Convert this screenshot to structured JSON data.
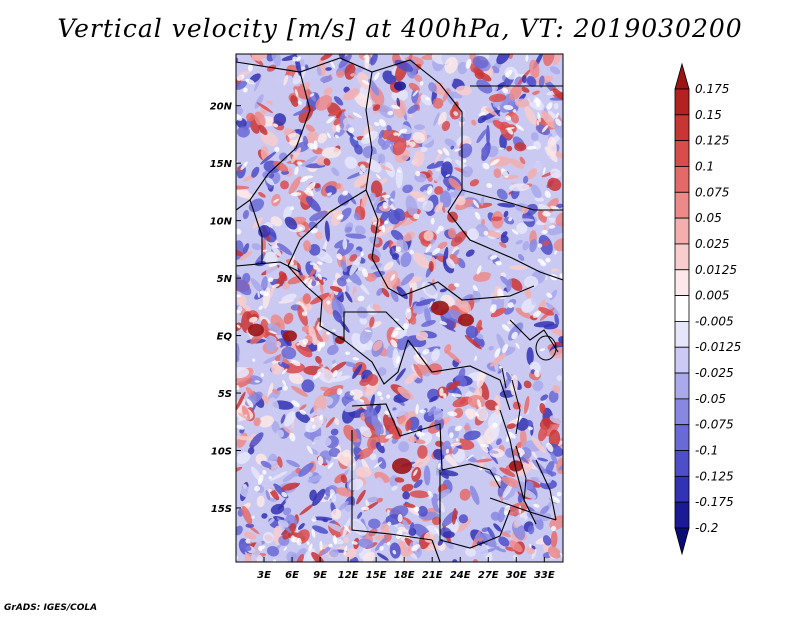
{
  "title": "Vertical velocity [m/s] at 400hPa, VT: 2019030200",
  "credit": "GrADS: IGES/COLA",
  "map": {
    "lat_labels": [
      "20N",
      "15N",
      "10N",
      "5N",
      "EQ",
      "5S",
      "10S",
      "15S"
    ],
    "lon_labels": [
      "3E",
      "6E",
      "9E",
      "12E",
      "15E",
      "18E",
      "21E",
      "24E",
      "27E",
      "30E",
      "33E"
    ],
    "lat_range": [
      -19.7,
      24.5
    ],
    "lon_range": [
      0,
      35
    ]
  },
  "colorbar": {
    "labels": [
      "0.175",
      "0.15",
      "0.125",
      "0.1",
      "0.075",
      "0.05",
      "0.025",
      "0.0125",
      "0.005",
      "-0.005",
      "-0.0125",
      "-0.025",
      "-0.05",
      "-0.075",
      "-0.1",
      "-0.125",
      "-0.175",
      "-0.2"
    ],
    "colors": [
      "#9c1414",
      "#b52020",
      "#c93434",
      "#d94c4c",
      "#e46a6a",
      "#ec8a8a",
      "#f3aeae",
      "#f8cdcd",
      "#fce8e8",
      "#ffffff",
      "#e6e6fb",
      "#cacaf4",
      "#a9a9ec",
      "#8888e2",
      "#6a6ad6",
      "#4e4ec8",
      "#3232b4",
      "#1a1a96",
      "#0c0c78"
    ]
  }
}
